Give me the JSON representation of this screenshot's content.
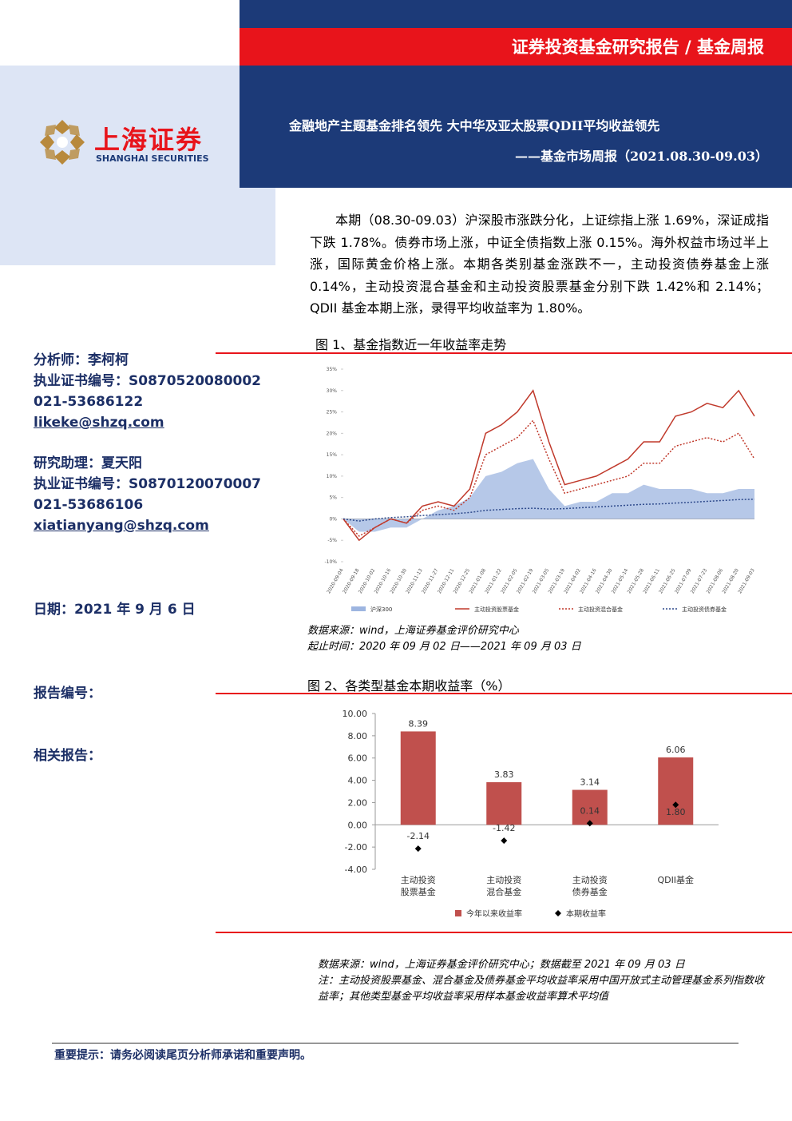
{
  "header": {
    "band": "证券投资基金研究报告 / 基金周报",
    "title": "金融地产主题基金排名领先 大中华及亚太股票QDII平均收益领先",
    "subtitle": "——基金市场周报（2021.08.30-09.03）"
  },
  "logo": {
    "cn": "上海证券",
    "en": "SHANGHAI SECURITIES"
  },
  "summary": "本期（08.30-09.03）沪深股市涨跌分化，上证综指上涨 1.69%，深证成指下跌 1.78%。债券市场上涨，中证全债指数上涨 0.15%。海外权益市场过半上涨，国际黄金价格上涨。本期各类别基金涨跌不一，主动投资债券基金上涨 0.14%，主动投资混合基金和主动投资股票基金分别下跌 1.42%和 2.14%；QDII 基金本期上涨，录得平均收益率为 1.80%。",
  "sidebar": {
    "analyst": [
      "分析师：李柯柯",
      "执业证书编号：S0870520080002",
      "021-53686122",
      "likeke@shzq.com"
    ],
    "assistant": [
      "研究助理：夏天阳",
      "执业证书编号：S0870120070007",
      "021-53686106",
      "xiatianyang@shzq.com"
    ],
    "date": "日期：2021 年 9 月 6 日",
    "report_no": "报告编号：",
    "related": "相关报告："
  },
  "notes": {
    "figure1": [
      "数据来源：wind，上海证券基金评价研究中心",
      "起止时间：2020 年 09 月 02 日——2021 年 09 月 03 日"
    ],
    "figure2": [
      "数据来源：wind，上海证券基金评价研究中心；数据截至 2021 年 09 月 03 日",
      "注：主动投资股票基金、混合基金及债券基金平均收益率采用中国开放式主动管理基金系列指数收益率；其他类型基金平均收益率采用样本基金收益率算术平均值"
    ]
  },
  "footer": "重要提示：请务必阅读尾页分析师承诺和重要声明。",
  "chart_data": [
    {
      "type": "line",
      "title": "图 1、基金指数近一年收益率走势",
      "categories": [
        "2020-09-04",
        "2020-09-18",
        "2020-10-02",
        "2020-10-16",
        "2020-10-30",
        "2020-11-13",
        "2020-11-27",
        "2020-12-11",
        "2020-12-25",
        "2021-01-08",
        "2021-01-22",
        "2021-02-05",
        "2021-02-19",
        "2021-03-05",
        "2021-03-19",
        "2021-04-02",
        "2021-04-16",
        "2021-04-30",
        "2021-05-14",
        "2021-05-28",
        "2021-06-11",
        "2021-06-25",
        "2021-07-09",
        "2021-07-23",
        "2021-08-06",
        "2021-08-20",
        "2021-09-03"
      ],
      "series": [
        {
          "name": "沪深300",
          "color": "#9db5e0",
          "style": "area",
          "values": [
            0,
            -3,
            -3,
            -2,
            -2,
            0,
            2,
            3,
            5,
            10,
            11,
            13,
            14,
            7,
            3,
            4,
            4,
            6,
            6,
            8,
            7,
            7,
            7,
            6,
            6,
            7,
            7
          ]
        },
        {
          "name": "主动投资股票基金",
          "color": "#c0392b",
          "style": "solid",
          "values": [
            0,
            -5,
            -2,
            0,
            -1,
            3,
            4,
            3,
            7,
            20,
            22,
            25,
            30,
            18,
            8,
            9,
            10,
            12,
            14,
            18,
            18,
            24,
            25,
            27,
            26,
            30,
            24
          ]
        },
        {
          "name": "主动投资混合基金",
          "color": "#c0392b",
          "style": "dotted",
          "values": [
            0,
            -4,
            -2,
            0,
            -1,
            2,
            3,
            2,
            5,
            15,
            17,
            19,
            23,
            14,
            6,
            7,
            8,
            9,
            10,
            13,
            13,
            17,
            18,
            19,
            18,
            20,
            14
          ]
        },
        {
          "name": "主动投资债券基金",
          "color": "#2e4a8c",
          "style": "dotted",
          "values": [
            0,
            -0.5,
            0,
            0.3,
            0.5,
            0.8,
            1,
            1.2,
            1.5,
            2,
            2.2,
            2.4,
            2.5,
            2.3,
            2.4,
            2.6,
            2.8,
            3,
            3.2,
            3.4,
            3.5,
            3.7,
            3.9,
            4.1,
            4.3,
            4.5,
            4.6
          ]
        }
      ],
      "ylim": [
        -10,
        35
      ],
      "yticks": [
        {
          "value": -10,
          "label": "-10%"
        },
        {
          "value": -5,
          "label": "-5%"
        },
        {
          "value": 0,
          "label": "0%"
        },
        {
          "value": 5,
          "label": "5%"
        },
        {
          "value": 10,
          "label": "10%"
        },
        {
          "value": 15,
          "label": "15%"
        },
        {
          "value": 20,
          "label": "20%"
        },
        {
          "value": 25,
          "label": "25%"
        },
        {
          "value": 30,
          "label": "30%"
        },
        {
          "value": 35,
          "label": "35%"
        }
      ],
      "legend": "bottom"
    },
    {
      "type": "bar",
      "title": "图 2、各类型基金本期收益率（%）",
      "categories": [
        [
          "主动投资",
          "股票基金"
        ],
        [
          "主动投资",
          "混合基金"
        ],
        [
          "主动投资",
          "债券基金"
        ],
        [
          "QDII基金"
        ]
      ],
      "series": [
        {
          "name": "今年以来收益率",
          "color": "#c0504d",
          "marker": "bar",
          "values": [
            8.39,
            3.83,
            3.14,
            6.06
          ]
        },
        {
          "name": "本期收益率",
          "color": "#000000",
          "marker": "diamond",
          "values": [
            -2.14,
            -1.42,
            0.14,
            1.8
          ],
          "value_labels": [
            "-2.14",
            "-1.42",
            "0.14",
            "1.80"
          ]
        }
      ],
      "ylim": [
        -4,
        10
      ],
      "yticks": [
        {
          "value": -4,
          "label": "-4.00"
        },
        {
          "value": -2,
          "label": "-2.00"
        },
        {
          "value": 0,
          "label": "0.00"
        },
        {
          "value": 2,
          "label": "2.00"
        },
        {
          "value": 4,
          "label": "4.00"
        },
        {
          "value": 6,
          "label": "6.00"
        },
        {
          "value": 8,
          "label": "8.00"
        },
        {
          "value": 10,
          "label": "10.00"
        }
      ],
      "legend": "bottom"
    }
  ]
}
